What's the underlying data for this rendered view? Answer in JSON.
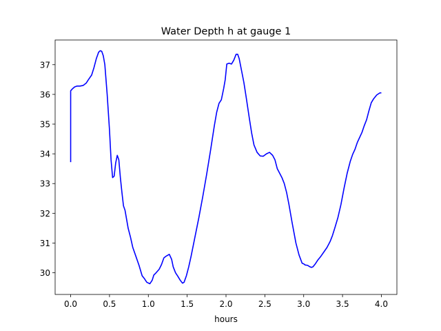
{
  "chart_data": {
    "type": "line",
    "title": "Water Depth h at gauge 1",
    "xlabel": "hours",
    "ylabel": "",
    "xlim": [
      -0.2,
      4.2
    ],
    "ylim": [
      29.27,
      37.83
    ],
    "grid": false,
    "xticks": [
      0.0,
      0.5,
      1.0,
      1.5,
      2.0,
      2.5,
      3.0,
      3.5,
      4.0
    ],
    "xtick_labels": [
      "0.0",
      "0.5",
      "1.0",
      "1.5",
      "2.0",
      "2.5",
      "3.0",
      "3.5",
      "4.0"
    ],
    "yticks": [
      30,
      31,
      32,
      33,
      34,
      35,
      36,
      37
    ],
    "ytick_labels": [
      "30",
      "31",
      "32",
      "33",
      "34",
      "35",
      "36",
      "37"
    ],
    "series": [
      {
        "color": "#0000ff",
        "x": [
          0.0,
          0.0,
          0.02,
          0.05,
          0.08,
          0.12,
          0.16,
          0.2,
          0.23,
          0.27,
          0.3,
          0.33,
          0.36,
          0.38,
          0.4,
          0.42,
          0.44,
          0.47,
          0.5,
          0.52,
          0.54,
          0.56,
          0.58,
          0.6,
          0.62,
          0.64,
          0.66,
          0.68,
          0.7,
          0.72,
          0.74,
          0.77,
          0.8,
          0.84,
          0.88,
          0.92,
          0.95,
          0.98,
          1.02,
          1.05,
          1.07,
          1.1,
          1.14,
          1.17,
          1.2,
          1.23,
          1.27,
          1.3,
          1.32,
          1.35,
          1.38,
          1.41,
          1.44,
          1.46,
          1.49,
          1.52,
          1.55,
          1.6,
          1.65,
          1.7,
          1.75,
          1.8,
          1.85,
          1.88,
          1.91,
          1.94,
          1.97,
          1.99,
          2.01,
          2.04,
          2.07,
          2.1,
          2.13,
          2.15,
          2.17,
          2.2,
          2.23,
          2.26,
          2.3,
          2.33,
          2.36,
          2.4,
          2.44,
          2.48,
          2.52,
          2.56,
          2.6,
          2.63,
          2.66,
          2.69,
          2.72,
          2.75,
          2.78,
          2.81,
          2.85,
          2.9,
          2.94,
          2.98,
          3.0,
          3.02,
          3.05,
          3.08,
          3.1,
          3.12,
          3.15,
          3.18,
          3.22,
          3.26,
          3.3,
          3.34,
          3.37,
          3.4,
          3.44,
          3.48,
          3.52,
          3.56,
          3.6,
          3.63,
          3.66,
          3.69,
          3.72,
          3.75,
          3.78,
          3.81,
          3.84,
          3.87,
          3.9,
          3.94,
          3.98,
          4.0
        ],
        "y": [
          33.72,
          36.12,
          36.18,
          36.25,
          36.28,
          36.28,
          36.3,
          36.38,
          36.5,
          36.65,
          36.9,
          37.2,
          37.42,
          37.47,
          37.45,
          37.3,
          37.0,
          36.0,
          34.8,
          33.8,
          33.2,
          33.25,
          33.7,
          33.95,
          33.8,
          33.2,
          32.7,
          32.25,
          32.1,
          31.8,
          31.5,
          31.2,
          30.85,
          30.55,
          30.25,
          29.9,
          29.8,
          29.68,
          29.63,
          29.75,
          29.92,
          30.0,
          30.12,
          30.28,
          30.5,
          30.56,
          30.62,
          30.45,
          30.2,
          30.0,
          29.88,
          29.75,
          29.65,
          29.68,
          29.9,
          30.2,
          30.55,
          31.2,
          31.85,
          32.55,
          33.3,
          34.1,
          34.95,
          35.4,
          35.7,
          35.82,
          36.2,
          36.5,
          37.02,
          37.05,
          37.02,
          37.15,
          37.35,
          37.35,
          37.2,
          36.8,
          36.4,
          35.9,
          35.2,
          34.7,
          34.3,
          34.05,
          33.93,
          33.92,
          34.0,
          34.05,
          33.95,
          33.8,
          33.5,
          33.35,
          33.2,
          33.0,
          32.7,
          32.3,
          31.7,
          31.0,
          30.6,
          30.32,
          30.3,
          30.26,
          30.25,
          30.2,
          30.18,
          30.2,
          30.3,
          30.42,
          30.55,
          30.7,
          30.85,
          31.05,
          31.25,
          31.5,
          31.85,
          32.3,
          32.85,
          33.35,
          33.75,
          33.98,
          34.15,
          34.38,
          34.55,
          34.72,
          34.95,
          35.15,
          35.45,
          35.72,
          35.85,
          35.98,
          36.05,
          36.05
        ]
      }
    ]
  }
}
